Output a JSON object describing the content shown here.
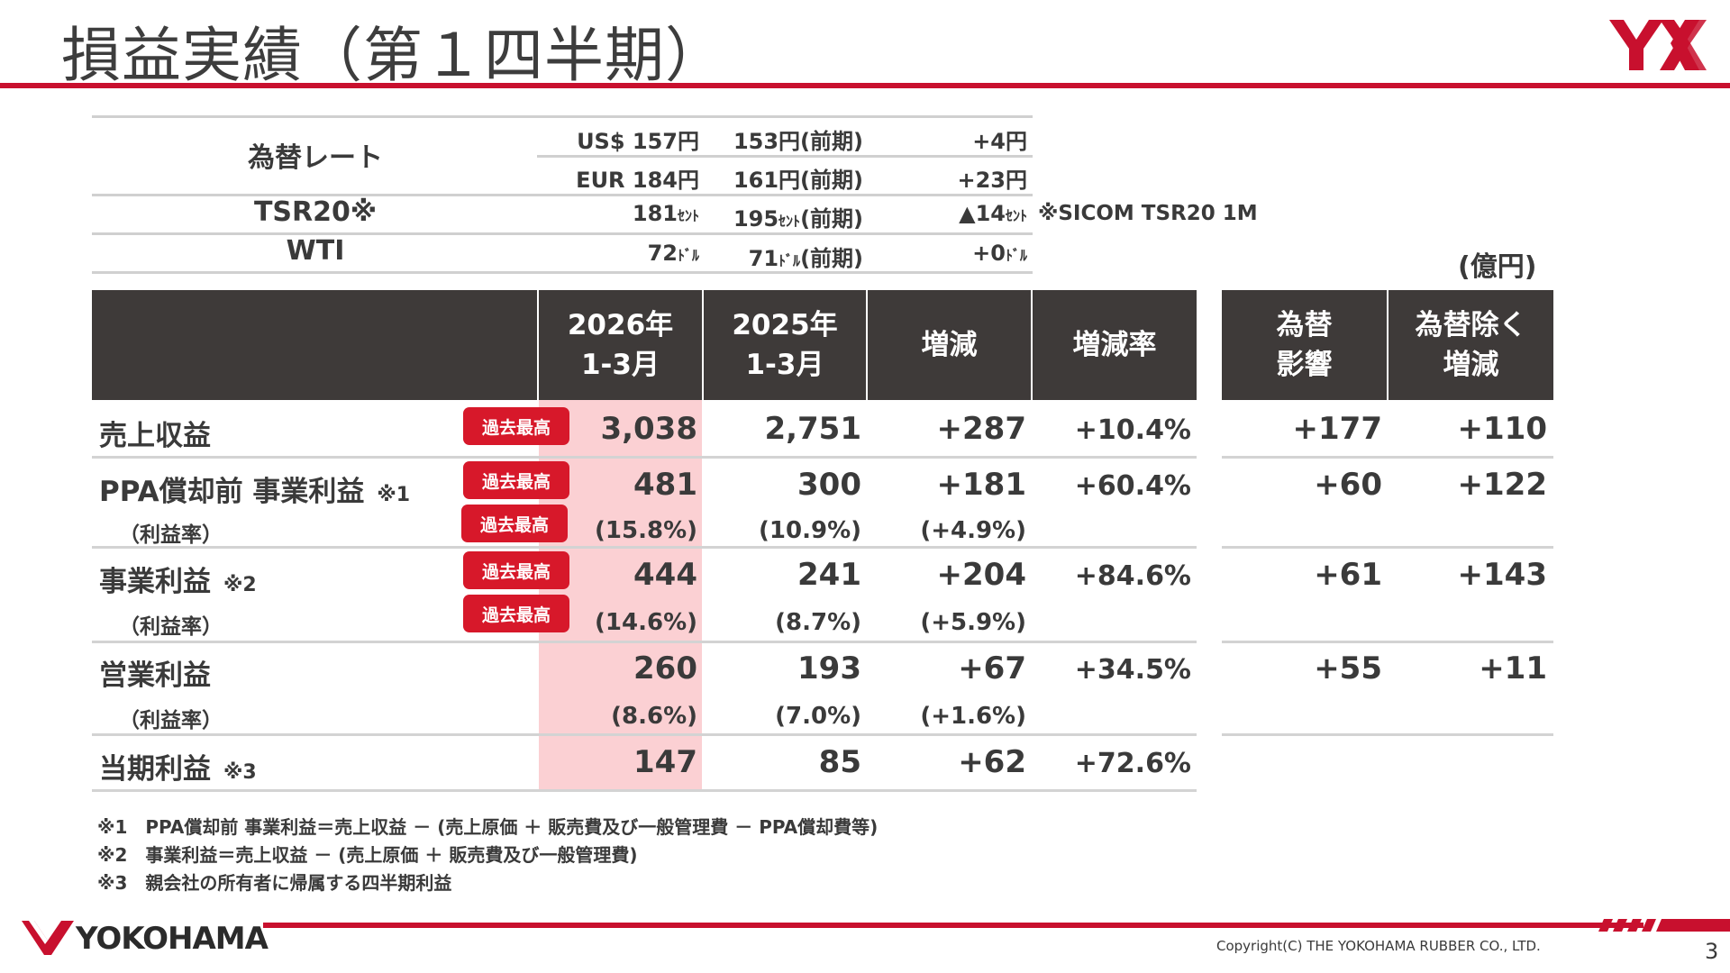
{
  "header": {
    "title": "損益実績（第１四半期）",
    "logo_text": "YX",
    "accent_color": "#c8102e"
  },
  "fx": {
    "rows": [
      {
        "label": "為替レート",
        "cur": "US$ 157円",
        "prev": "153円(前期)",
        "diff": "+4円"
      },
      {
        "label": "",
        "cur": "EUR 184円",
        "prev": "161円(前期)",
        "diff": "+23円"
      },
      {
        "label": "TSR20※",
        "cur_num": "181",
        "cur_unit": "ｾﾝﾄ",
        "prev_num": "195",
        "prev_unit": "ｾﾝﾄ",
        "prev_suffix": "(前期)",
        "diff_num": "▲14",
        "diff_unit": "ｾﾝﾄ"
      },
      {
        "label": "WTI",
        "cur_num": "72",
        "cur_unit": "ﾄﾞﾙ",
        "prev_num": "71",
        "prev_unit": "ﾄﾞﾙ",
        "prev_suffix": "(前期)",
        "diff_num": "+0",
        "diff_unit": "ﾄﾞﾙ"
      }
    ],
    "sicom_note": "※SICOM TSR20 1M"
  },
  "unit_label": "(億円)",
  "table": {
    "headers": [
      "2026年\n1-3月",
      "2025年\n1-3月",
      "増減",
      "増減率",
      "為替\n影響",
      "為替除く\n増減"
    ],
    "badge_text": "過去最高",
    "rows": [
      {
        "label": "売上収益",
        "note": "",
        "cur": "3,038",
        "prev": "2,751",
        "diff": "+287",
        "rate": "+10.4%",
        "fx": "+177",
        "exfx": "+110",
        "badge": true
      },
      {
        "label": "PPA償却前 事業利益",
        "note": "※1",
        "cur": "481",
        "prev": "300",
        "diff": "+181",
        "rate": "+60.4%",
        "fx": "+60",
        "exfx": "+122",
        "badge": true,
        "sub": {
          "label": "（利益率）",
          "cur": "(15.8%)",
          "prev": "(10.9%)",
          "diff": "(+4.9%)",
          "badge": true
        }
      },
      {
        "label": "事業利益",
        "note": "※2",
        "cur": "444",
        "prev": "241",
        "diff": "+204",
        "rate": "+84.6%",
        "fx": "+61",
        "exfx": "+143",
        "badge": true,
        "sub": {
          "label": "（利益率）",
          "cur": "(14.6%)",
          "prev": "(8.7%)",
          "diff": "(+5.9%)",
          "badge": true
        }
      },
      {
        "label": "営業利益",
        "note": "",
        "cur": "260",
        "prev": "193",
        "diff": "+67",
        "rate": "+34.5%",
        "fx": "+55",
        "exfx": "+11",
        "badge": false,
        "sub": {
          "label": "（利益率）",
          "cur": "(8.6%)",
          "prev": "(7.0%)",
          "diff": "(+1.6%)",
          "badge": false
        }
      },
      {
        "label": "当期利益",
        "note": "※3",
        "cur": "147",
        "prev": "85",
        "diff": "+62",
        "rate": "+72.6%",
        "fx": "",
        "exfx": "",
        "badge": false
      }
    ]
  },
  "footnotes": [
    "※1　PPA償却前 事業利益＝売上収益 － (売上原価 ＋ 販売費及び一般管理費 － PPA償却費等)",
    "※2　事業利益＝売上収益 － (売上原価 ＋ 販売費及び一般管理費)",
    "※3　親会社の所有者に帰属する四半期利益"
  ],
  "footer": {
    "brand": "YOKOHAMA",
    "copyright": "Copyright(C) THE YOKOHAMA RUBBER CO., LTD.",
    "page_number": "3"
  }
}
